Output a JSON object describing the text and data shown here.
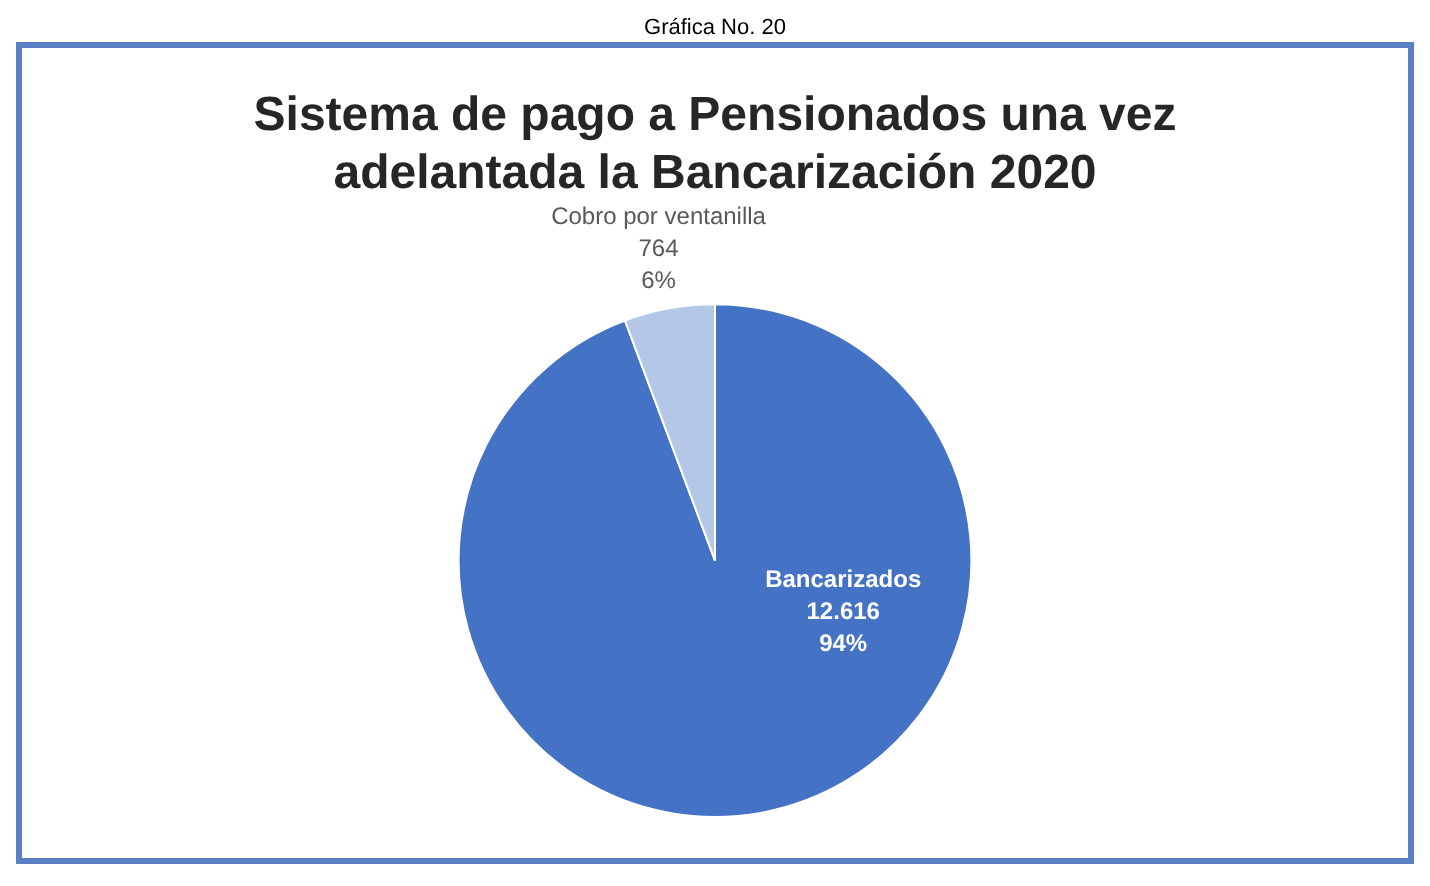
{
  "chart_data": {
    "type": "pie",
    "title": "Sistema de pago a Pensionados una vez adelantada la Bancarización 2020",
    "annotations": [
      "Gráfica No. 20"
    ],
    "categories": [
      "Bancarizados",
      "Cobro por ventanilla"
    ],
    "values": [
      12616,
      764
    ],
    "colors": [
      "#4472c4",
      "#b4c7e7"
    ],
    "value_labels": [
      "12.616\n94%",
      "764\n6%"
    ],
    "legend": false
  }
}
